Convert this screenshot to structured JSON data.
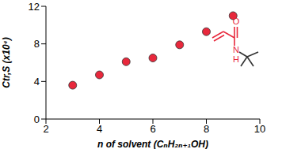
{
  "chart_data": {
    "type": "scatter",
    "x_label": "n of solvent (CₙH₂ₙ₊₁OH)",
    "y_label": "Ctr,S (x10⁴)",
    "x": [
      3,
      4,
      5,
      6,
      7,
      8,
      9
    ],
    "values": [
      3.6,
      4.7,
      6.1,
      6.5,
      7.9,
      9.3,
      11.0
    ],
    "color": "#e8283c",
    "marker": "circle",
    "xlim": [
      2,
      10
    ],
    "xticks": [
      2,
      4,
      6,
      8,
      10
    ],
    "ylim": [
      0,
      12
    ],
    "yticks": [
      0,
      4,
      8,
      12
    ],
    "grid": false,
    "annotations": [
      "O",
      "N",
      "H"
    ]
  }
}
